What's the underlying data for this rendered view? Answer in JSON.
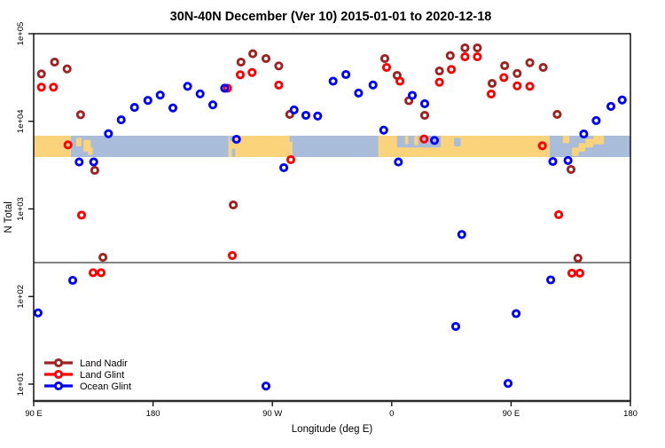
{
  "title": "30N-40N December (Ver 10)   2015-01-01 to 2020-12-18",
  "legend": {
    "items": [
      {
        "label": "Land Nadir",
        "color": "#A02222"
      },
      {
        "label": "Land Glint",
        "color": "#FF0000"
      },
      {
        "label": "Ocean Glint",
        "color": "#0000FF"
      }
    ]
  },
  "colors": {
    "land_nadir": "#A02222",
    "land_glint": "#FF0000",
    "ocean_glint": "#0000FF",
    "band_land": "#FAD37A",
    "band_ocean": "#A9BDDB",
    "threshold_line": "#3a3a3a",
    "frame": "#000000"
  },
  "chart_data": {
    "type": "scatter",
    "title": "30N-40N December (Ver 10)   2015-01-01 to 2020-12-18",
    "xlabel": "Longitude (deg E)",
    "ylabel": "N Total",
    "x_axis": {
      "note": "longitude axis spans 450 deg, wrapping east from 90E",
      "range_lon": [
        90,
        540
      ],
      "ticks": [
        {
          "lon": 90,
          "label": "90 E"
        },
        {
          "lon": 180,
          "label": "180"
        },
        {
          "lon": 270,
          "label": "90 W"
        },
        {
          "lon": 360,
          "label": "0"
        },
        {
          "lon": 450,
          "label": "90 E"
        },
        {
          "lon": 540,
          "label": "180"
        }
      ]
    },
    "y_axis": {
      "scale": "log10",
      "range": [
        10,
        100000
      ],
      "ticks": [
        {
          "value": 100000,
          "label": "1e+05"
        },
        {
          "value": 10000,
          "label": "1e+04"
        },
        {
          "value": 1000,
          "label": "1e+03"
        },
        {
          "value": 100,
          "label": "1e+02"
        },
        {
          "value": 10,
          "label": "1e+01"
        }
      ]
    },
    "threshold_line": {
      "n": 244
    },
    "map_band": {
      "n_top": 6800,
      "n_bottom": 3900,
      "segments": [
        {
          "lon0": 90,
          "lon1": 118,
          "type": "land"
        },
        {
          "lon0": 118,
          "lon1": 237,
          "type": "ocean"
        },
        {
          "lon0": 237,
          "lon1": 285,
          "type": "land"
        },
        {
          "lon0": 285,
          "lon1": 350,
          "type": "ocean"
        },
        {
          "lon0": 350,
          "lon1": 479,
          "type": "land"
        },
        {
          "lon0": 479,
          "lon1": 540,
          "type": "ocean"
        }
      ],
      "patches": [
        {
          "lon0": 122,
          "lon1": 126,
          "fy0": 0.1,
          "fy1": 0.5,
          "type": "land"
        },
        {
          "lon0": 127.5,
          "lon1": 133,
          "fy0": 0.2,
          "fy1": 0.75,
          "type": "land"
        },
        {
          "lon0": 131,
          "lon1": 134.5,
          "fy0": 0.55,
          "fy1": 0.9,
          "type": "land"
        },
        {
          "lon0": 237.8,
          "lon1": 241,
          "fy0": 0.0,
          "fy1": 0.25,
          "type": "ocean"
        },
        {
          "lon0": 239.5,
          "lon1": 242,
          "fy0": 0.6,
          "fy1": 1.0,
          "type": "ocean"
        },
        {
          "lon0": 283,
          "lon1": 285,
          "fy0": 0.0,
          "fy1": 0.3,
          "type": "ocean"
        },
        {
          "lon0": 364,
          "lon1": 397,
          "fy0": 0.0,
          "fy1": 0.55,
          "type": "ocean"
        },
        {
          "lon0": 370,
          "lon1": 372.5,
          "fy0": 0.0,
          "fy1": 0.4,
          "type": "land"
        },
        {
          "lon0": 377,
          "lon1": 380,
          "fy0": 0.0,
          "fy1": 0.45,
          "type": "land"
        },
        {
          "lon0": 407,
          "lon1": 412,
          "fy0": 0.1,
          "fy1": 0.5,
          "type": "ocean"
        },
        {
          "lon0": 489,
          "lon1": 494,
          "fy0": 0.0,
          "fy1": 0.35,
          "type": "land"
        },
        {
          "lon0": 496,
          "lon1": 501,
          "fy0": 0.55,
          "fy1": 0.95,
          "type": "land"
        },
        {
          "lon0": 501,
          "lon1": 506,
          "fy0": 0.35,
          "fy1": 0.75,
          "type": "land"
        },
        {
          "lon0": 506,
          "lon1": 512,
          "fy0": 0.15,
          "fy1": 0.55,
          "type": "land"
        },
        {
          "lon0": 512,
          "lon1": 520,
          "fy0": 0.0,
          "fy1": 0.4,
          "type": "land"
        }
      ]
    },
    "series": [
      {
        "name": "Land Nadir",
        "color": "#A02222",
        "points": [
          [
            95.8,
            34800
          ],
          [
            105.8,
            47400
          ],
          [
            115.2,
            39600
          ],
          [
            125.4,
            11900
          ],
          [
            136.1,
            2760
          ],
          [
            142.2,
            280
          ],
          [
            240.5,
            1110
          ],
          [
            246.3,
            47400
          ],
          [
            255.2,
            59000
          ],
          [
            265.2,
            52000
          ],
          [
            274.8,
            42900
          ],
          [
            283.1,
            12000
          ],
          [
            354.8,
            52100
          ],
          [
            364.1,
            33400
          ],
          [
            372.9,
            17200
          ],
          [
            384.9,
            11700
          ],
          [
            396,
            37600
          ],
          [
            404.1,
            56200
          ],
          [
            415.2,
            68900
          ],
          [
            424.6,
            68900
          ],
          [
            435.7,
            27100
          ],
          [
            445.2,
            43200
          ],
          [
            454.6,
            35200
          ],
          [
            464.2,
            46600
          ],
          [
            474.2,
            41200
          ],
          [
            484.8,
            12000
          ],
          [
            495.2,
            2820
          ],
          [
            500.4,
            274
          ]
        ]
      },
      {
        "name": "Land Glint",
        "color": "#FF0000",
        "points": [
          [
            95.8,
            24500
          ],
          [
            104.9,
            24500
          ],
          [
            115.9,
            5380
          ],
          [
            126.1,
            850
          ],
          [
            134.8,
            187
          ],
          [
            140.8,
            187
          ],
          [
            236.2,
            23900
          ],
          [
            239.8,
            294
          ],
          [
            245.8,
            34000
          ],
          [
            254.7,
            36100
          ],
          [
            274.8,
            25900
          ],
          [
            283.9,
            3650
          ],
          [
            356.1,
            41200
          ],
          [
            366.2,
            28700
          ],
          [
            384.4,
            6280
          ],
          [
            396,
            27900
          ],
          [
            405,
            39100
          ],
          [
            415.2,
            54600
          ],
          [
            424.6,
            54600
          ],
          [
            435,
            20500
          ],
          [
            444.6,
            31600
          ],
          [
            454.6,
            25400
          ],
          [
            464.2,
            25100
          ],
          [
            473.6,
            5260
          ],
          [
            485.9,
            859
          ],
          [
            495.9,
            185
          ],
          [
            501.9,
            185
          ]
        ]
      },
      {
        "name": "Ocean Glint",
        "color": "#0000FF",
        "points": [
          [
            93.3,
            65
          ],
          [
            119.4,
            153
          ],
          [
            124.3,
            3430
          ],
          [
            135.3,
            3440
          ],
          [
            146.4,
            7230
          ],
          [
            156,
            10400
          ],
          [
            166,
            14400
          ],
          [
            176.1,
            17300
          ],
          [
            185.4,
            19900
          ],
          [
            195,
            14200
          ],
          [
            206.1,
            25100
          ],
          [
            215.5,
            20600
          ],
          [
            225.1,
            15400
          ],
          [
            234,
            23900
          ],
          [
            242.9,
            6240
          ],
          [
            265.2,
            9.5
          ],
          [
            278.6,
            2960
          ],
          [
            286.4,
            13500
          ],
          [
            295.3,
            11700
          ],
          [
            304.2,
            11500
          ],
          [
            315.8,
            28700
          ],
          [
            325.4,
            34200
          ],
          [
            335,
            21000
          ],
          [
            345.9,
            26000
          ],
          [
            354,
            7930
          ],
          [
            365,
            3430
          ],
          [
            375.5,
            19800
          ],
          [
            384.9,
            15900
          ],
          [
            392.2,
            6050
          ],
          [
            408.3,
            45.5
          ],
          [
            412.8,
            511
          ],
          [
            447.7,
            10.2
          ],
          [
            453.8,
            63.8
          ],
          [
            479.9,
            155
          ],
          [
            481.5,
            3480
          ],
          [
            492.9,
            3570
          ],
          [
            504.8,
            7170
          ],
          [
            514.2,
            10200
          ],
          [
            525.3,
            14800
          ],
          [
            533.8,
            17500
          ]
        ]
      }
    ],
    "legend_entries": [
      "Land Nadir",
      "Land Glint",
      "Ocean Glint"
    ],
    "legend_position": "bottom-left",
    "grid": false
  }
}
